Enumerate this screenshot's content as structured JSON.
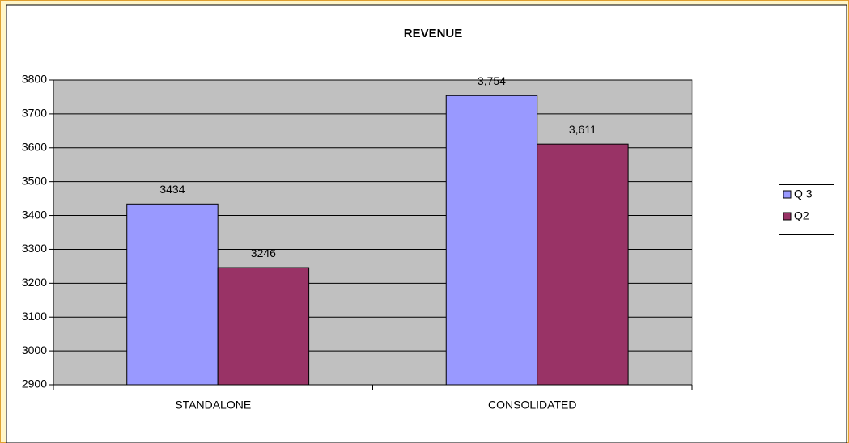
{
  "chart_data": {
    "type": "bar",
    "title": "REVENUE",
    "categories": [
      "STANDALONE",
      "CONSOLIDATED"
    ],
    "series": [
      {
        "name": "Q 3",
        "color": "#9999ff",
        "values": [
          3434,
          3754
        ],
        "value_labels": [
          "3434",
          "3,754"
        ]
      },
      {
        "name": "Q2",
        "color": "#993366",
        "values": [
          3246,
          3611
        ],
        "value_labels": [
          "3246",
          "3,611"
        ]
      }
    ],
    "ylim": [
      2900,
      3800
    ],
    "yticks": [
      2900,
      3000,
      3100,
      3200,
      3300,
      3400,
      3500,
      3600,
      3700,
      3800
    ],
    "grid": true,
    "legend": "right"
  }
}
